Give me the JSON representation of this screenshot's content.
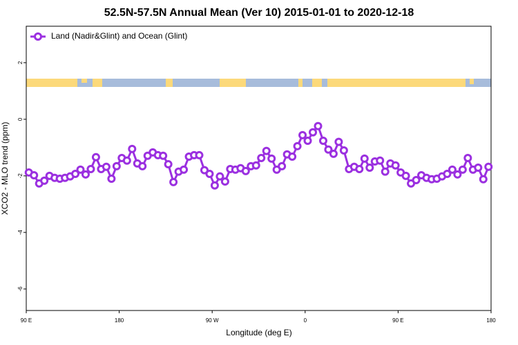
{
  "chart_data": {
    "type": "line",
    "title": "52.5N-57.5N Annual Mean (Ver 10)   2015-01-01 to 2020-12-18",
    "x_label": "Longitude (deg E)",
    "y_label": "XCO2 - MLO trend (ppm)",
    "legend": "upper left",
    "xlim": [
      90,
      540
    ],
    "ylim": [
      -6.76,
      3.29
    ],
    "xticks": [
      {
        "value": 90,
        "label": "90 E"
      },
      {
        "value": 180,
        "label": "180"
      },
      {
        "value": 270,
        "label": "90 W"
      },
      {
        "value": 360,
        "label": "0"
      },
      {
        "value": 450,
        "label": "90 E"
      },
      {
        "value": 540,
        "label": "180"
      }
    ],
    "yticks": [
      2,
      0,
      -2,
      -4,
      -6
    ],
    "x": [
      92.5,
      97.5,
      102.5,
      107.5,
      112.5,
      117.5,
      122.5,
      127.5,
      132.5,
      137.5,
      142.5,
      147.5,
      152.5,
      157.5,
      162.5,
      167.5,
      172.5,
      177.5,
      182.5,
      187.5,
      192.5,
      197.5,
      202.5,
      207.5,
      212.5,
      217.5,
      222.5,
      227.5,
      232.5,
      237.5,
      242.5,
      247.5,
      252.5,
      257.5,
      262.5,
      267.5,
      272.5,
      277.5,
      282.5,
      287.5,
      292.5,
      297.5,
      302.5,
      307.5,
      312.5,
      317.5,
      322.5,
      327.5,
      332.5,
      337.5,
      342.5,
      347.5,
      352.5,
      357.5,
      362.5,
      367.5,
      372.5,
      377.5,
      382.5,
      387.5,
      392.5,
      397.5,
      402.5,
      407.5,
      412.5,
      417.5,
      422.5,
      427.5,
      432.5,
      437.5,
      442.5,
      447.5,
      452.5,
      457.5,
      462.5,
      467.5,
      472.5,
      477.5,
      482.5,
      487.5,
      492.5,
      497.5,
      502.5,
      507.5,
      512.5,
      517.5,
      522.5,
      527.5,
      532.5,
      537.5
    ],
    "series": [
      {
        "name": "Land (Nadir&Glint) and Ocean (Glint)",
        "color": "#9b30e0",
        "values": [
          -1.88,
          -1.98,
          -2.27,
          -2.17,
          -2.0,
          -2.07,
          -2.1,
          -2.07,
          -2.02,
          -1.93,
          -1.78,
          -1.95,
          -1.76,
          -1.34,
          -1.76,
          -1.68,
          -2.1,
          -1.66,
          -1.37,
          -1.46,
          -1.05,
          -1.56,
          -1.66,
          -1.29,
          -1.17,
          -1.27,
          -1.29,
          -1.59,
          -2.22,
          -1.85,
          -1.78,
          -1.32,
          -1.27,
          -1.27,
          -1.8,
          -1.93,
          -2.34,
          -2.02,
          -2.2,
          -1.76,
          -1.78,
          -1.73,
          -1.83,
          -1.66,
          -1.63,
          -1.37,
          -1.12,
          -1.39,
          -1.78,
          -1.66,
          -1.24,
          -1.32,
          -0.95,
          -0.56,
          -0.76,
          -0.46,
          -0.24,
          -0.76,
          -1.07,
          -1.22,
          -0.8,
          -1.1,
          -1.76,
          -1.68,
          -1.76,
          -1.39,
          -1.71,
          -1.49,
          -1.46,
          -1.85,
          -1.56,
          -1.63,
          -1.88,
          -2.0,
          -2.27,
          -2.15,
          -1.98,
          -2.07,
          -2.12,
          -2.1,
          -2.02,
          -1.93,
          -1.78,
          -1.95,
          -1.78,
          -1.37,
          -1.78,
          -1.71,
          -2.12,
          -1.68
        ]
      }
    ]
  }
}
